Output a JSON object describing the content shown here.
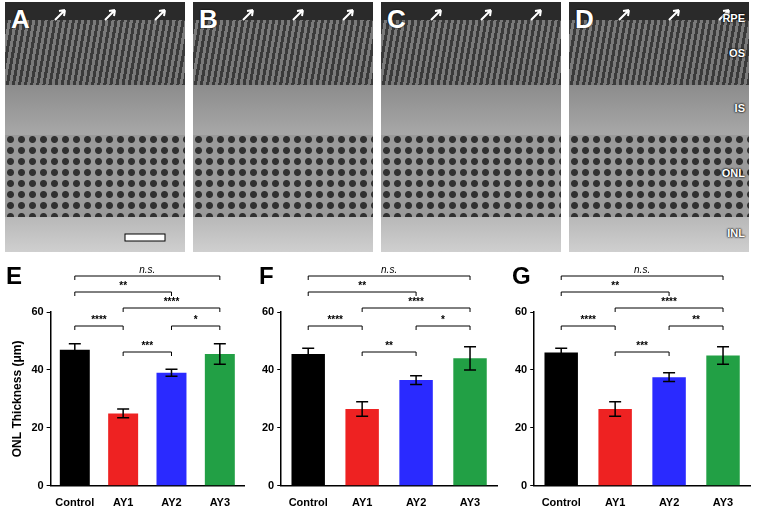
{
  "image_panels": {
    "labels": [
      "A",
      "B",
      "C",
      "D"
    ],
    "layers": [
      "RPE",
      "OS",
      "IS",
      "ONL",
      "INL"
    ]
  },
  "chart_data": [
    {
      "type": "bar",
      "panel": "E",
      "y_label": "ONL Thickness (μm)",
      "categories": [
        "Control",
        "AY1",
        "AY2",
        "AY3"
      ],
      "values": [
        47,
        25,
        39,
        45.5
      ],
      "errors": [
        2,
        1.5,
        1.2,
        3.5
      ],
      "colors": [
        "#000000",
        "#ee2222",
        "#2a2aff",
        "#22a045"
      ],
      "ylim": [
        0,
        60
      ],
      "yticks": [
        0,
        20,
        40,
        60
      ],
      "grid": false,
      "annotations": [
        {
          "from": "Control",
          "to": "AY3",
          "label": "n.s."
        },
        {
          "from": "Control",
          "to": "AY2",
          "label": "**"
        },
        {
          "from": "AY1",
          "to": "AY3",
          "label": "****"
        },
        {
          "from": "Control",
          "to": "AY1",
          "label": "****"
        },
        {
          "from": "AY1",
          "to": "AY2",
          "label": "***"
        },
        {
          "from": "AY2",
          "to": "AY3",
          "label": "*"
        }
      ]
    },
    {
      "type": "bar",
      "panel": "F",
      "categories": [
        "Control",
        "AY1",
        "AY2",
        "AY3"
      ],
      "values": [
        45.5,
        26.5,
        36.5,
        44
      ],
      "errors": [
        2,
        2.5,
        1.5,
        4
      ],
      "colors": [
        "#000000",
        "#ee2222",
        "#2a2aff",
        "#22a045"
      ],
      "ylim": [
        0,
        60
      ],
      "yticks": [
        0,
        20,
        40,
        60
      ],
      "grid": false,
      "annotations": [
        {
          "from": "Control",
          "to": "AY3",
          "label": "n.s."
        },
        {
          "from": "Control",
          "to": "AY2",
          "label": "**"
        },
        {
          "from": "AY1",
          "to": "AY3",
          "label": "****"
        },
        {
          "from": "Control",
          "to": "AY1",
          "label": "****"
        },
        {
          "from": "AY1",
          "to": "AY2",
          "label": "**"
        },
        {
          "from": "AY2",
          "to": "AY3",
          "label": "*"
        }
      ]
    },
    {
      "type": "bar",
      "panel": "G",
      "categories": [
        "Control",
        "AY1",
        "AY2",
        "AY3"
      ],
      "values": [
        46,
        26.5,
        37.5,
        45
      ],
      "errors": [
        1.5,
        2.5,
        1.5,
        3
      ],
      "colors": [
        "#000000",
        "#ee2222",
        "#2a2aff",
        "#22a045"
      ],
      "ylim": [
        0,
        60
      ],
      "yticks": [
        0,
        20,
        40,
        60
      ],
      "grid": false,
      "annotations": [
        {
          "from": "Control",
          "to": "AY3",
          "label": "n.s."
        },
        {
          "from": "Control",
          "to": "AY2",
          "label": "**"
        },
        {
          "from": "AY1",
          "to": "AY3",
          "label": "****"
        },
        {
          "from": "Control",
          "to": "AY1",
          "label": "****"
        },
        {
          "from": "AY1",
          "to": "AY2",
          "label": "***"
        },
        {
          "from": "AY2",
          "to": "AY3",
          "label": "**"
        }
      ]
    }
  ]
}
